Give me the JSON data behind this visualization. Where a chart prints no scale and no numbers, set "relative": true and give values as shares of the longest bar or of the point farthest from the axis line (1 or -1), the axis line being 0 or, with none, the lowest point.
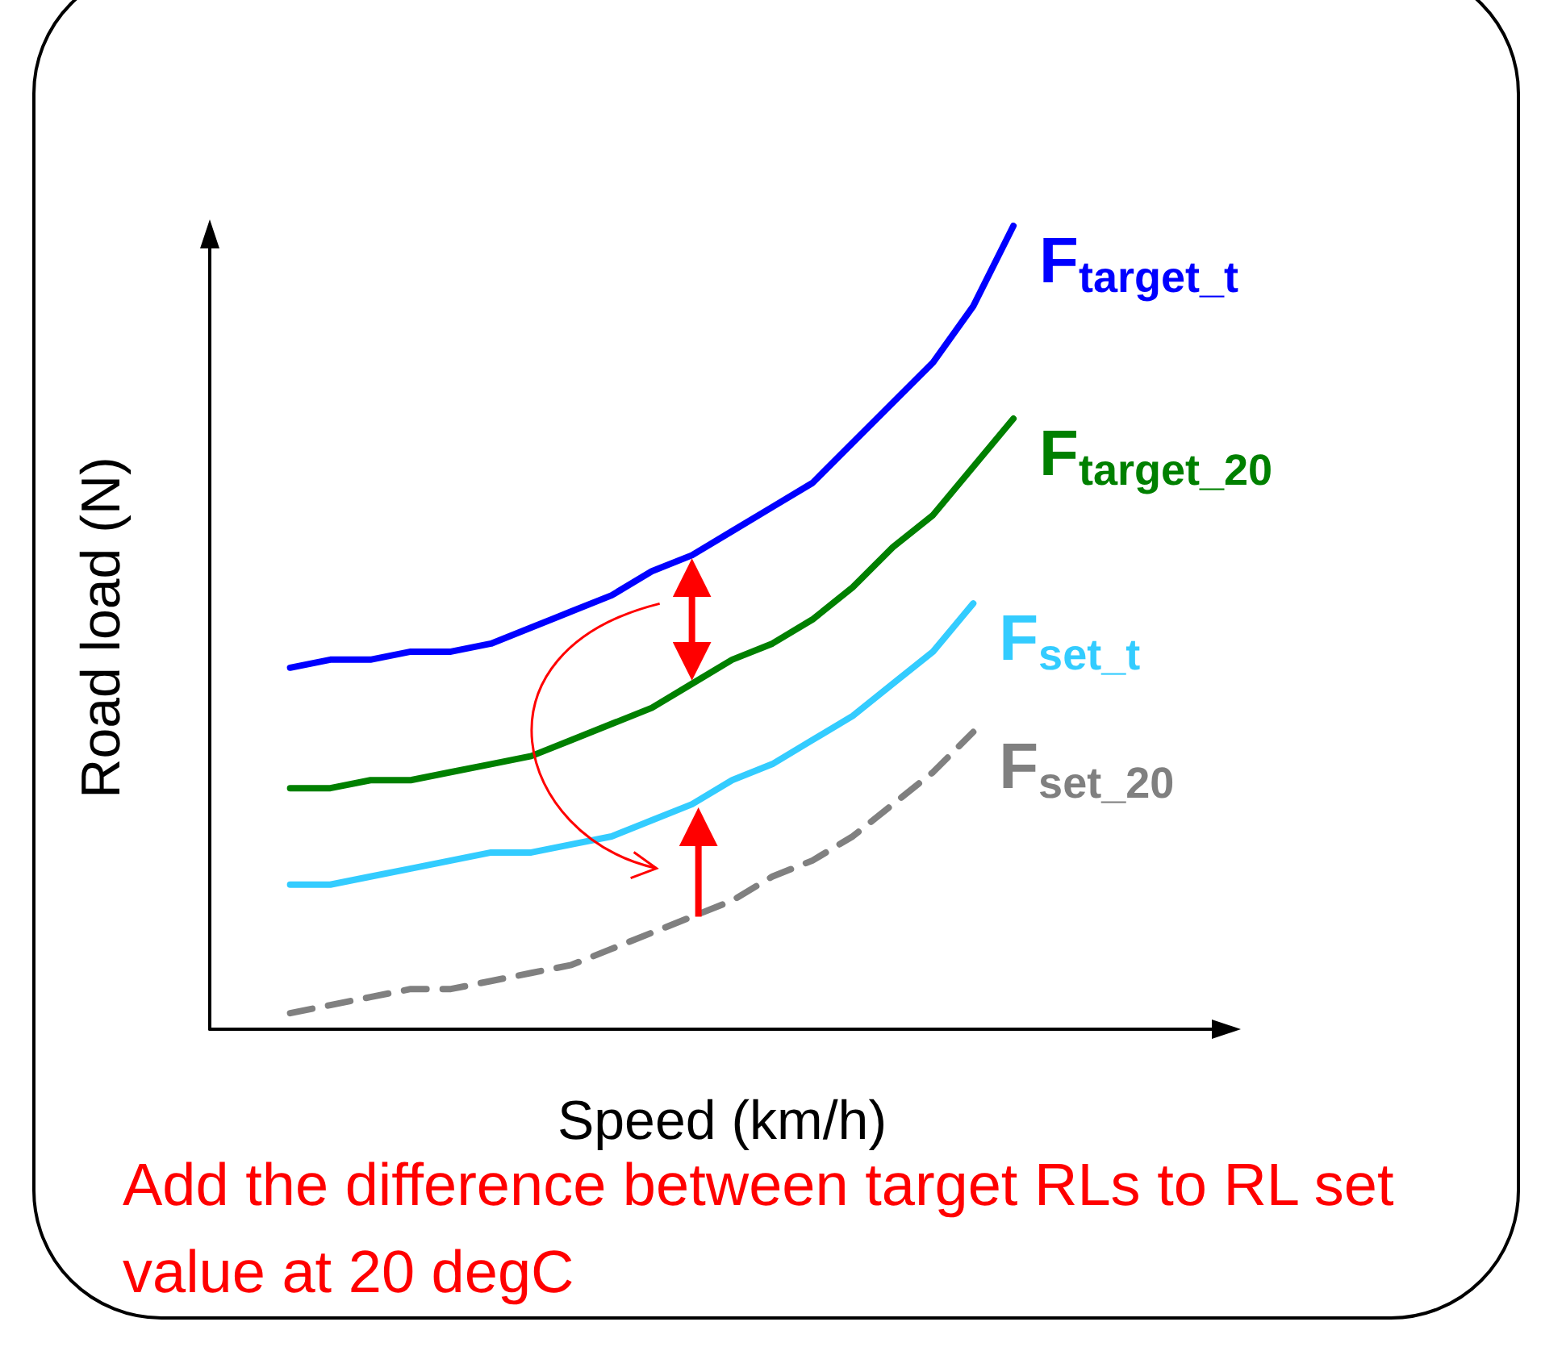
{
  "chart_data": {
    "type": "line",
    "relative": true,
    "xlabel": "Speed (km/h)",
    "ylabel": "Road load (N)",
    "marker": "none",
    "legend": false,
    "grid": false,
    "tick_labels": false,
    "categories": [
      null,
      null,
      null,
      null,
      null,
      null,
      null,
      null,
      null,
      null,
      null,
      null,
      null,
      null,
      null,
      null,
      null,
      null,
      null
    ],
    "series": [
      {
        "name": "F$_{target_t}$",
        "color": "#0000ff",
        "line_style": "solid",
        "values": [
          0.45,
          0.46,
          0.46,
          0.47,
          0.47,
          0.48,
          0.5,
          0.52,
          0.54,
          0.57,
          0.59,
          0.62,
          0.65,
          0.68,
          0.73,
          0.78,
          0.83,
          0.9,
          1.0
        ]
      },
      {
        "name": "F$_{target_20}$",
        "color": "#008000",
        "line_style": "solid",
        "values": [
          0.3,
          0.3,
          0.31,
          0.31,
          0.32,
          0.33,
          0.34,
          0.36,
          0.38,
          0.4,
          0.43,
          0.46,
          0.48,
          0.51,
          0.55,
          0.6,
          0.64,
          0.7,
          0.76
        ]
      },
      {
        "name": "F$_{set_t}$",
        "color": "#33ccff",
        "line_style": "solid",
        "values": [
          0.18,
          0.18,
          0.19,
          0.2,
          0.21,
          0.22,
          0.22,
          0.23,
          0.24,
          0.26,
          0.28,
          0.31,
          0.33,
          0.36,
          0.39,
          0.43,
          0.47,
          0.53,
          null
        ]
      },
      {
        "name": "F$_{set_20}$",
        "color": "#808080",
        "line_style": "dashed",
        "values": [
          0.02,
          0.03,
          0.04,
          0.05,
          0.05,
          0.06,
          0.07,
          0.08,
          0.1,
          0.12,
          0.14,
          0.16,
          0.19,
          0.21,
          0.24,
          0.28,
          0.32,
          0.37,
          null
        ]
      }
    ],
    "annotations": [
      "Add the difference between target RLs to RL set value at 20 degC"
    ]
  }
}
